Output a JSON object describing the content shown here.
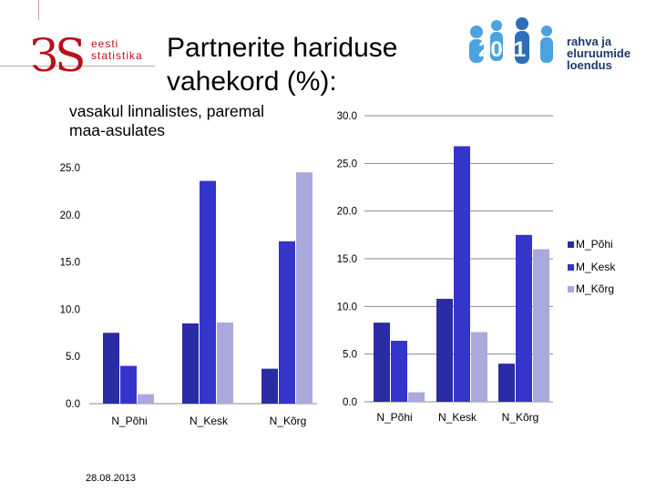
{
  "header": {
    "org_mark": "ЗS",
    "org_line1": "eesti",
    "org_line2": "statistika",
    "title_line1": "Partnerite hariduse",
    "title_line2": "vahekord (%):",
    "subtitle_line1": "vasakul linnalistes, paremal",
    "subtitle_line2": "maa-asulates",
    "census_badge": "2011",
    "census_line1": "rahva ja",
    "census_line2": "eluruumide",
    "census_line3": "loendus"
  },
  "footer": {
    "date": "28.08.2013"
  },
  "colors": {
    "M_Põhi": "#2b2ba6",
    "M_Kesk": "#3535cc",
    "M_Kõrg": "#a9a9dc",
    "brand": "#b5121b"
  },
  "chart_data": [
    {
      "type": "bar",
      "title": "vasakul linnalistes",
      "categories": [
        "N_Põhi",
        "N_Kesk",
        "N_Kõrg"
      ],
      "series": [
        {
          "name": "M_Põhi",
          "values": [
            7.5,
            8.5,
            3.7
          ]
        },
        {
          "name": "M_Kesk",
          "values": [
            4.0,
            23.6,
            17.2
          ]
        },
        {
          "name": "M_Kõrg",
          "values": [
            1.0,
            8.6,
            24.5
          ]
        }
      ],
      "yticks": [
        "0.0",
        "5.0",
        "10.0",
        "15.0",
        "20.0",
        "25.0"
      ],
      "ylim": [
        0,
        25
      ],
      "grid": false,
      "legend": "none"
    },
    {
      "type": "bar",
      "title": "paremal maa-asulates",
      "categories": [
        "N_Põhi",
        "N_Kesk",
        "N_Kõrg"
      ],
      "series": [
        {
          "name": "M_Põhi",
          "values": [
            8.3,
            10.8,
            4.0
          ]
        },
        {
          "name": "M_Kesk",
          "values": [
            6.4,
            26.8,
            17.5
          ]
        },
        {
          "name": "M_Kõrg",
          "values": [
            1.0,
            7.3,
            16.0
          ]
        }
      ],
      "yticks": [
        "0.0",
        "5.0",
        "10.0",
        "15.0",
        "20.0",
        "25.0",
        "30.0"
      ],
      "ylim": [
        0,
        30
      ],
      "grid": true,
      "legend": "right"
    }
  ]
}
